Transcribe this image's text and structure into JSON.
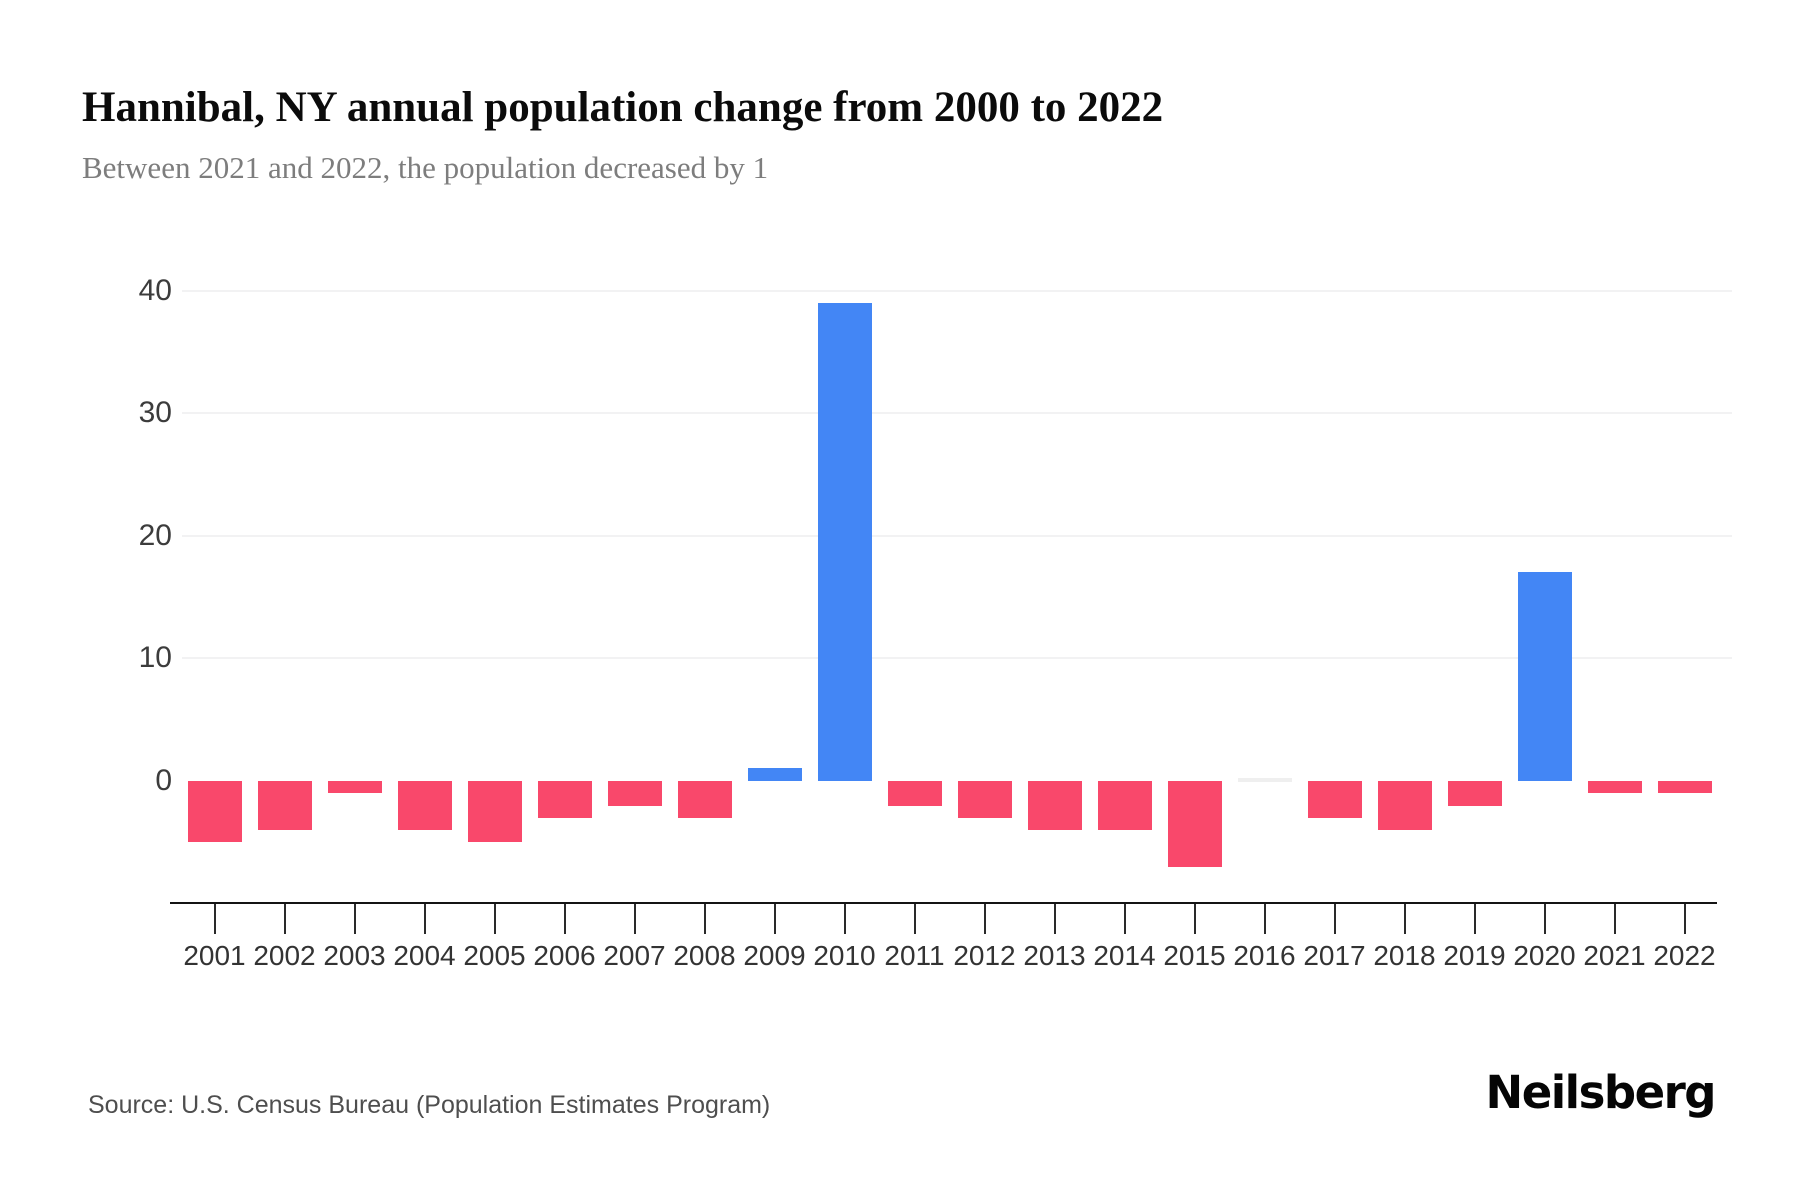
{
  "chart_data": {
    "type": "bar",
    "title": "Hannibal, NY annual population change from 2000 to 2022",
    "subtitle": "Between 2021 and 2022, the population decreased by 1",
    "categories": [
      "2001",
      "2002",
      "2003",
      "2004",
      "2005",
      "2006",
      "2007",
      "2008",
      "2009",
      "2010",
      "2011",
      "2012",
      "2013",
      "2014",
      "2015",
      "2016",
      "2017",
      "2018",
      "2019",
      "2020",
      "2021",
      "2022"
    ],
    "values": [
      -5,
      -4,
      -1,
      -4,
      -5,
      -3,
      -2,
      -3,
      1,
      39,
      -2,
      -3,
      -4,
      -4,
      -7,
      0,
      -3,
      -4,
      -2,
      17,
      -1,
      -1
    ],
    "xlabel": "",
    "ylabel": "",
    "yticks": [
      0,
      10,
      20,
      30,
      40
    ],
    "ylim": [
      -10,
      45
    ],
    "grid": "horizontal",
    "legend": "none",
    "colors": {
      "positive": "#4386F5",
      "negative": "#F9486B",
      "zero": "#efefef",
      "gridline": "#f2f2f3",
      "axis": "#141414"
    }
  },
  "footer": {
    "source": "Source: U.S. Census Bureau (Population Estimates Program)",
    "logo": "Neilsberg"
  }
}
